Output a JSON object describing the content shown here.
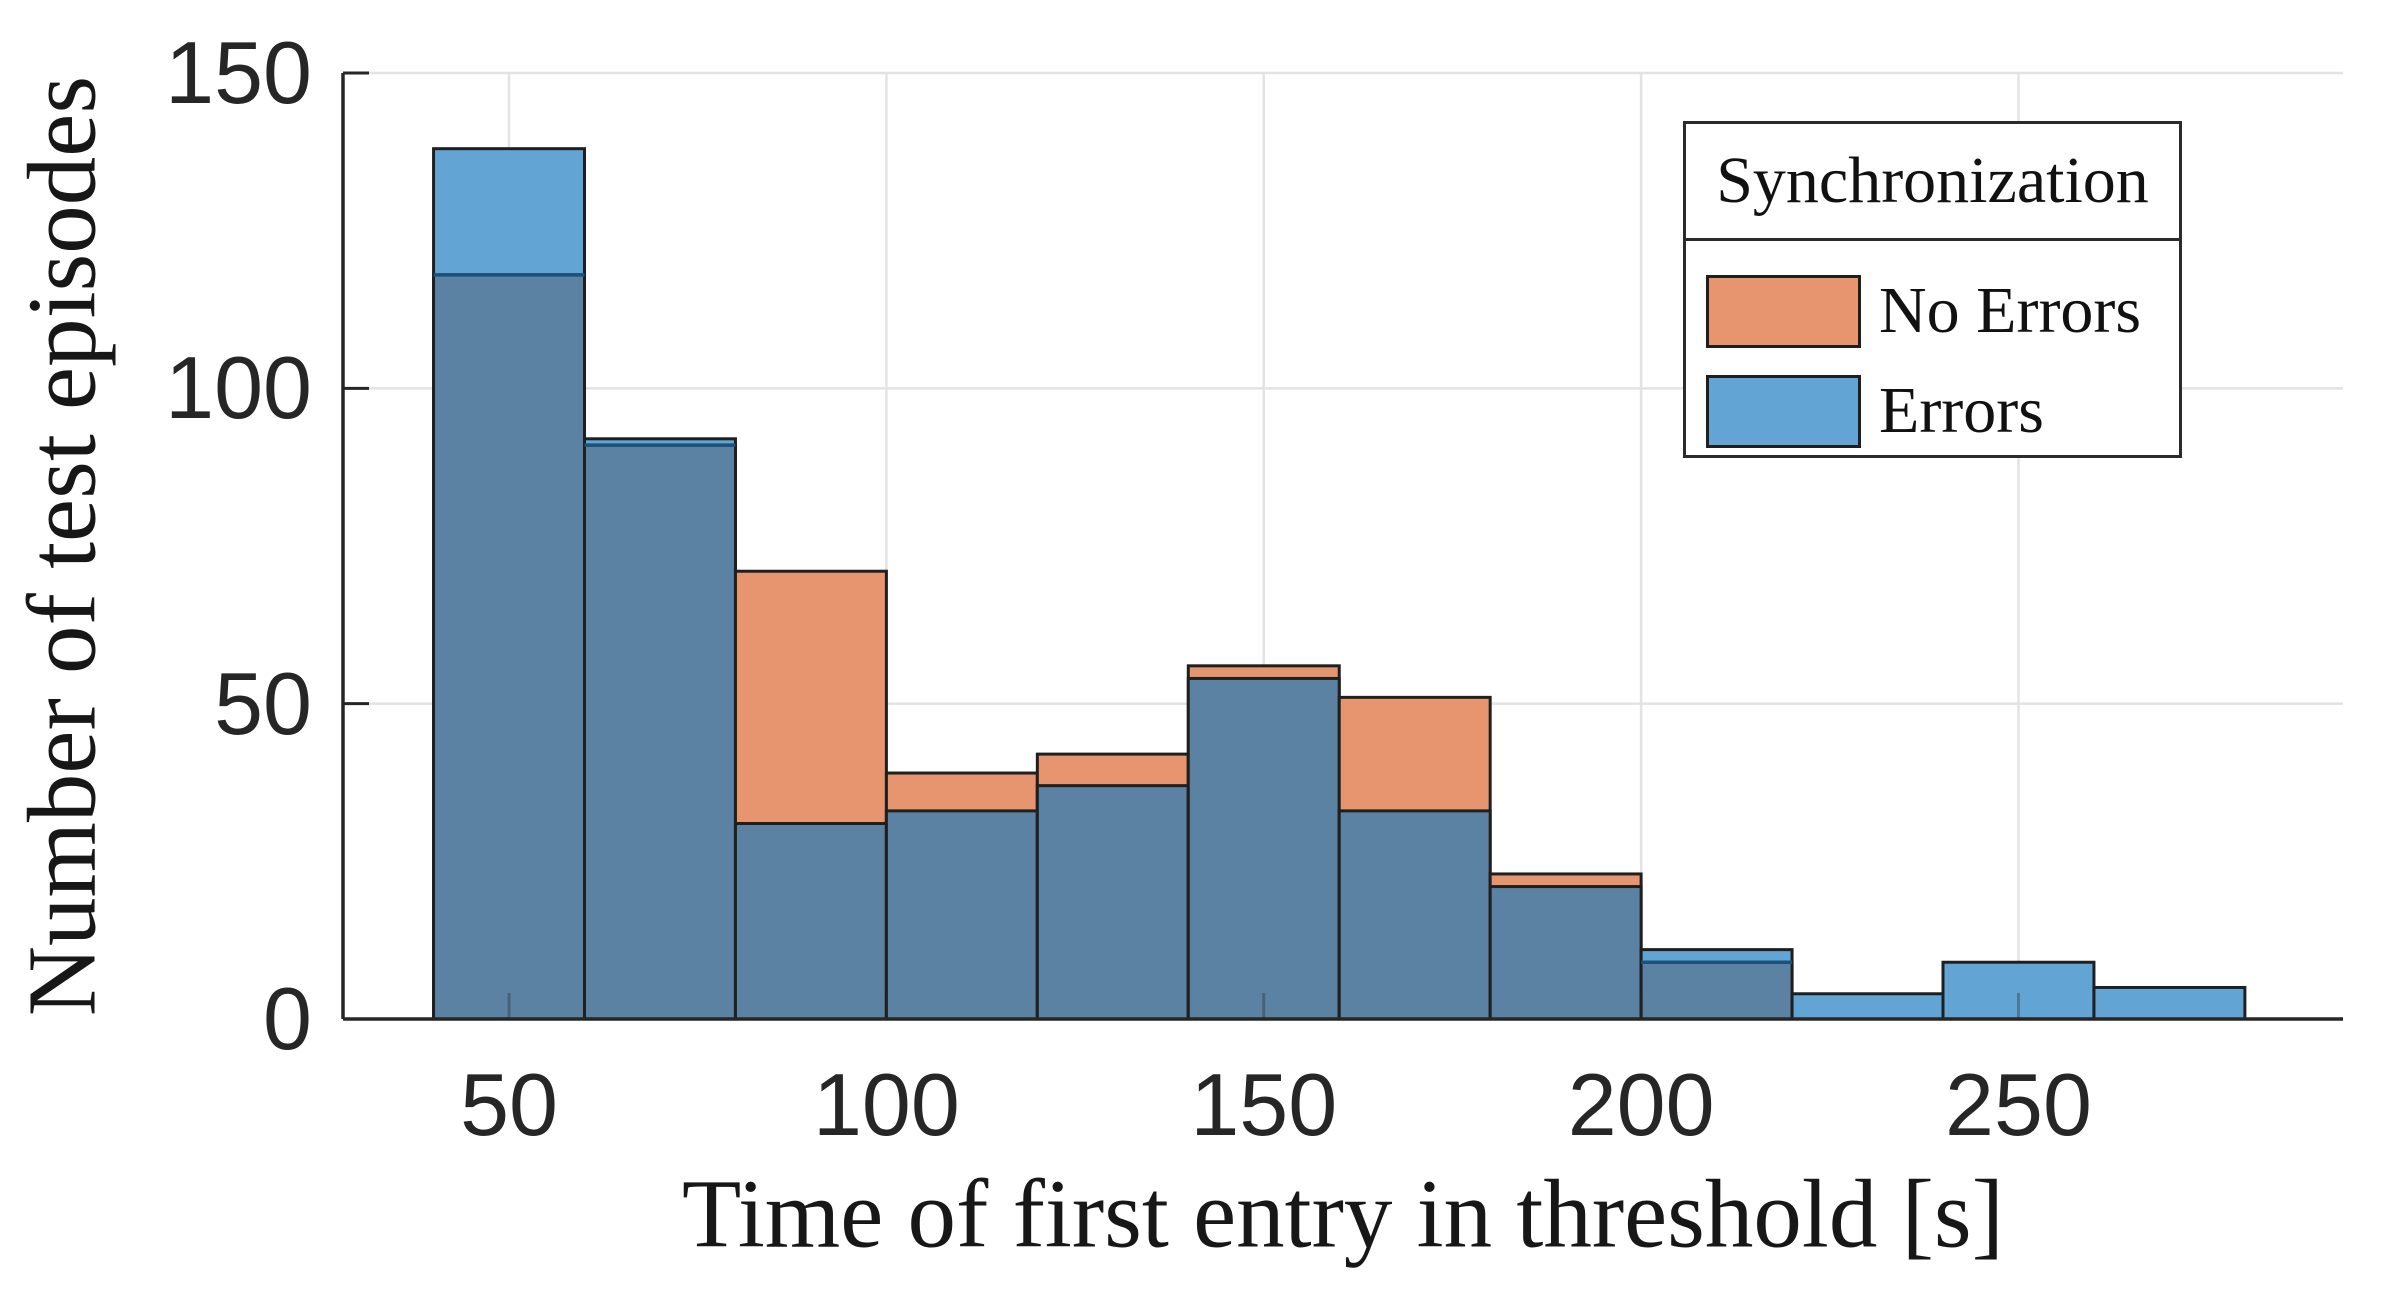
{
  "chart_data": {
    "type": "histogram",
    "overlay": true,
    "bin_start": 40,
    "bin_width": 20,
    "bin_edges": [
      40,
      60,
      80,
      100,
      120,
      140,
      160,
      180,
      200,
      220,
      240,
      260,
      280
    ],
    "series": [
      {
        "name": "No Errors",
        "color": "#E7956E",
        "values": [
          118,
          91,
          71,
          39,
          42,
          56,
          51,
          23,
          9,
          0,
          0,
          0
        ]
      },
      {
        "name": "Errors",
        "color": "#62A5D4",
        "values": [
          138,
          92,
          31,
          33,
          37,
          54,
          33,
          21,
          11,
          4,
          9,
          5
        ]
      }
    ],
    "overlap_color": "#5C82A3",
    "edge_color": "#1F1F1F",
    "overlap_boundary_color": "#1A527C",
    "xlabel": "Time of first entry in threshold [s]",
    "ylabel": "Number of test episodes",
    "xticks": [
      50,
      100,
      150,
      200,
      250
    ],
    "yticks": [
      0,
      50,
      100,
      150
    ],
    "xlim": [
      28,
      293
    ],
    "ylim": [
      0,
      150
    ],
    "grid": true,
    "grid_color": "#E3E3E3",
    "axis_color": "#262626",
    "legend": {
      "title": "Synchronization",
      "position": "top-right",
      "entries": [
        {
          "label": "No Errors",
          "color": "#E7956E"
        },
        {
          "label": "Errors",
          "color": "#62A5D4"
        }
      ]
    }
  }
}
